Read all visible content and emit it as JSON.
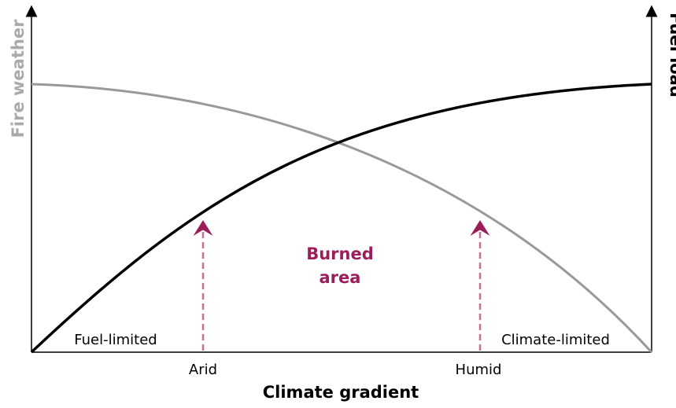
{
  "left_axis_label": "Fire weather",
  "right_axis_label": "Fuel load",
  "x_axis_title": "Climate gradient",
  "x_labels": [
    "Arid",
    "Humid"
  ],
  "center_label": [
    "Burned",
    "area"
  ],
  "region_labels": [
    "Fuel-limited",
    "Climate-limited"
  ]
}
